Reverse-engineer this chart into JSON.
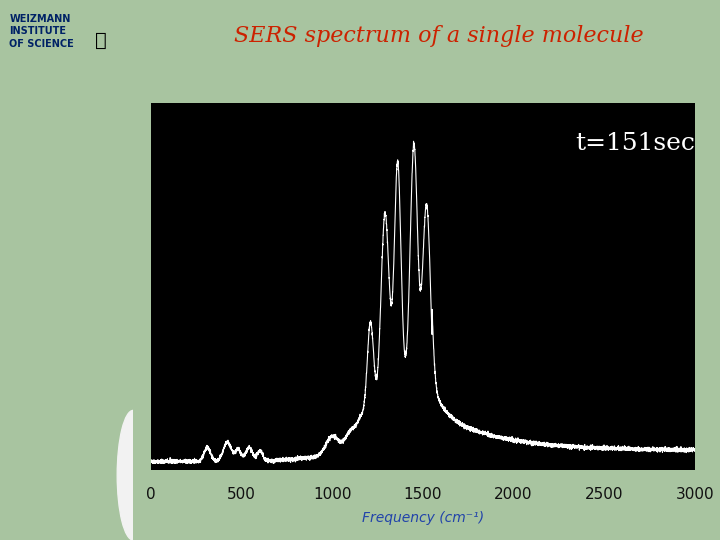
{
  "title": "SERS spectrum of a single molecule",
  "title_color": "#cc2200",
  "xlabel": "Frequency (cm⁻¹)",
  "annotation": "t=151sec",
  "annotation_color": "#ffffff",
  "xlim": [
    0,
    3000
  ],
  "xticks": [
    0,
    500,
    1000,
    1500,
    2000,
    2500,
    3000
  ],
  "plot_bg": "#000000",
  "outer_bg": "#a8c4a0",
  "line_color": "#ffffff",
  "fig_bg": "#ffffff",
  "xlabel_color": "#2244aa",
  "logo_bg": "#3355aa",
  "logo_text_color": "#002266",
  "header_bg": "#a8c4a0",
  "white_area_bg": "#f0f0f0"
}
